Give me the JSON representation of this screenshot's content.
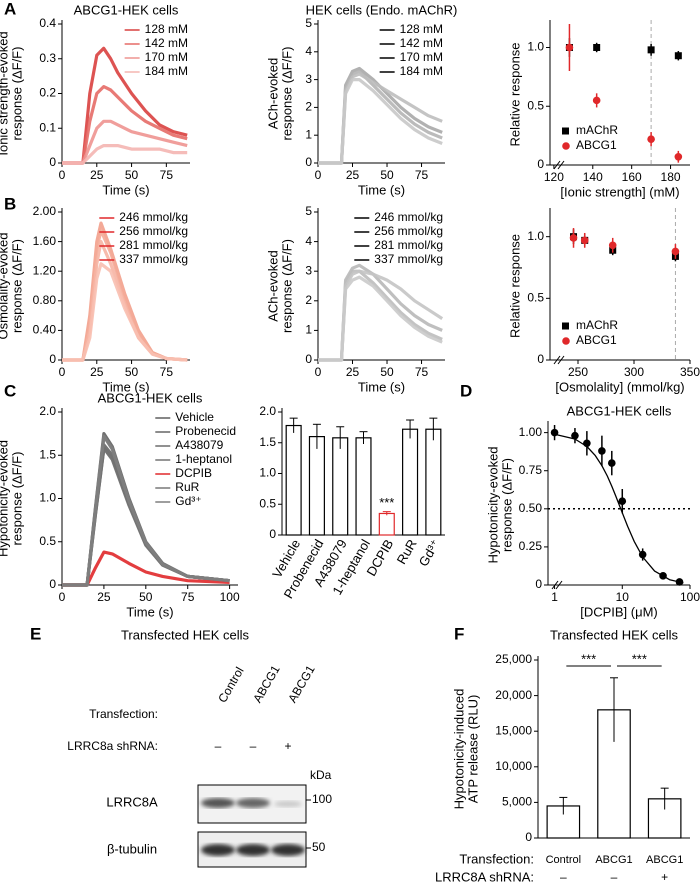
{
  "panel_labels": [
    "A",
    "B",
    "C",
    "D",
    "E",
    "F"
  ],
  "chart_data": [
    {
      "type": "line",
      "title": "ABCG1-HEK cells",
      "ylabel": [
        "Ionic strength-evoked",
        "response (ΔF/F)"
      ],
      "xlabel": "Time (s)",
      "x": [
        0,
        10,
        15,
        20,
        25,
        30,
        35,
        40,
        50,
        60,
        70,
        80,
        90
      ],
      "series": [
        {
          "name": "128 mM",
          "color": "#d9403f",
          "values": [
            0,
            0,
            0,
            0.2,
            0.31,
            0.33,
            0.3,
            0.26,
            0.2,
            0.15,
            0.11,
            0.09,
            0.08
          ]
        },
        {
          "name": "142 mM",
          "color": "#e56b67",
          "values": [
            0,
            0,
            0,
            0.12,
            0.2,
            0.22,
            0.21,
            0.19,
            0.15,
            0.12,
            0.1,
            0.08,
            0.07
          ]
        },
        {
          "name": "170 mM",
          "color": "#ee9490",
          "values": [
            0,
            0,
            0,
            0.05,
            0.1,
            0.12,
            0.12,
            0.11,
            0.09,
            0.08,
            0.07,
            0.06,
            0.05
          ]
        },
        {
          "name": "184 mM",
          "color": "#f4b5b1",
          "values": [
            0,
            0,
            0,
            0.02,
            0.04,
            0.05,
            0.05,
            0.05,
            0.04,
            0.04,
            0.04,
            0.03,
            0.03
          ]
        }
      ],
      "xlim": [
        0,
        92
      ],
      "xticks": [
        0,
        25,
        50,
        75
      ],
      "ylim": [
        0,
        0.4
      ],
      "yticks": [
        0,
        0.1,
        0.2,
        0.3,
        0.4
      ],
      "legend": "upper right"
    },
    {
      "type": "line",
      "title": "HEK cells (Endo. mAChR)",
      "ylabel": [
        "ACh-evoked",
        "response (ΔF/F)"
      ],
      "xlabel": "Time (s)",
      "x": [
        0,
        10,
        17,
        20,
        25,
        30,
        40,
        50,
        60,
        70,
        80,
        90
      ],
      "series": [
        {
          "name": "128 mM",
          "color": "#a9a9a9",
          "values": [
            0,
            0,
            0,
            2.8,
            3.3,
            3.4,
            3.0,
            2.5,
            2.0,
            1.6,
            1.3,
            1.1
          ]
        },
        {
          "name": "142 mM",
          "color": "#b4b4b4",
          "values": [
            0,
            0,
            0,
            2.7,
            3.2,
            3.3,
            2.8,
            2.3,
            1.8,
            1.4,
            1.1,
            0.9
          ]
        },
        {
          "name": "170 mM",
          "color": "#bebebe",
          "values": [
            0,
            0,
            0,
            2.6,
            3.1,
            3.2,
            2.9,
            2.6,
            2.3,
            2.0,
            1.7,
            1.5
          ]
        },
        {
          "name": "184 mM",
          "color": "#c8c8c8",
          "values": [
            0,
            0,
            0,
            2.5,
            3.0,
            3.0,
            2.6,
            2.1,
            1.6,
            1.2,
            0.9,
            0.7
          ]
        }
      ],
      "xlim": [
        0,
        92
      ],
      "xticks": [
        0,
        25,
        50,
        75
      ],
      "ylim": [
        0,
        5
      ],
      "yticks": [
        0,
        1,
        2,
        3,
        4,
        5
      ],
      "legend": "upper right",
      "legend_swatch_color": "#000000"
    },
    {
      "type": "scatter",
      "ylabel": [
        "Relative response"
      ],
      "xlabel": "[Ionic strength] (mM)",
      "x": [
        128,
        142,
        170,
        184
      ],
      "series": [
        {
          "name": "mAChR",
          "color": "#000000",
          "marker": "square",
          "values": [
            1.0,
            1.0,
            0.98,
            0.93
          ],
          "errors": [
            0.08,
            0.04,
            0.05,
            0.04
          ]
        },
        {
          "name": "ABCG1",
          "color": "#e0282a",
          "marker": "circle",
          "values": [
            1.0,
            0.55,
            0.22,
            0.07
          ],
          "errors": [
            0.2,
            0.06,
            0.06,
            0.05
          ]
        }
      ],
      "xlim": [
        118,
        190
      ],
      "xticks": [
        120,
        140,
        160,
        180
      ],
      "ylim": [
        0,
        1.2
      ],
      "yticks": [
        0,
        0.5,
        {
          "value": 1,
          "label": "1.0"
        }
      ],
      "vline": 170,
      "legend": "lower left"
    },
    {
      "type": "line",
      "ylabel": [
        "Osmolality-evoked",
        "response (ΔF/F)"
      ],
      "xlabel": "Time (s)",
      "x": [
        0,
        15,
        20,
        25,
        28,
        35,
        45,
        55,
        65,
        75,
        90
      ],
      "series": [
        {
          "name": "246 mmol/kg",
          "color": "#f2a08c",
          "values": [
            0,
            0,
            0.6,
            1.6,
            1.85,
            1.5,
            0.9,
            0.4,
            0.1,
            0.02,
            0
          ]
        },
        {
          "name": "256 mmol/kg",
          "color": "#f4aa97",
          "values": [
            0,
            0,
            0.5,
            1.5,
            1.75,
            1.45,
            0.85,
            0.35,
            0.1,
            0.02,
            0
          ]
        },
        {
          "name": "281 mmol/kg",
          "color": "#f6b4a3",
          "values": [
            0,
            0,
            0.4,
            1.3,
            1.6,
            1.3,
            0.75,
            0.3,
            0.08,
            0.02,
            0
          ]
        },
        {
          "name": "337 mmol/kg",
          "color": "#f8bfb0",
          "values": [
            0,
            0,
            0.3,
            1.1,
            1.3,
            1.2,
            0.7,
            0.3,
            0.08,
            0.02,
            0
          ]
        }
      ],
      "xlim": [
        0,
        92
      ],
      "xticks": [
        0,
        25,
        50,
        75
      ],
      "ylim": [
        0,
        2.0
      ],
      "yticks": [
        0,
        {
          "value": 0.4,
          "label": "0.40"
        },
        {
          "value": 0.8,
          "label": "0.80"
        },
        {
          "value": 1.2,
          "label": "1.20"
        },
        {
          "value": 1.6,
          "label": "1.60"
        },
        {
          "value": 2,
          "label": "2.00"
        }
      ],
      "legend": "upper right",
      "legend_swatch_color": "#e0282a"
    },
    {
      "type": "line",
      "ylabel": [
        "ACh-evoked",
        "response (ΔF/F)"
      ],
      "xlabel": "Time (s)",
      "x": [
        0,
        10,
        17,
        20,
        25,
        30,
        40,
        50,
        60,
        70,
        80,
        90
      ],
      "series": [
        {
          "name": "246 mmol/kg",
          "color": "#b8b8b8",
          "values": [
            0,
            0,
            0,
            2.7,
            3.1,
            3.2,
            2.9,
            2.4,
            1.9,
            1.5,
            1.2,
            1.0
          ]
        },
        {
          "name": "256 mmol/kg",
          "color": "#bdbdbd",
          "values": [
            0,
            0,
            0,
            2.6,
            3.0,
            3.0,
            2.6,
            2.1,
            1.6,
            1.2,
            0.9,
            0.7
          ]
        },
        {
          "name": "281 mmol/kg",
          "color": "#c4c4c4",
          "values": [
            0,
            0,
            0,
            2.5,
            2.9,
            3.0,
            2.9,
            2.7,
            2.4,
            2.0,
            1.7,
            1.4
          ]
        },
        {
          "name": "337 mmol/kg",
          "color": "#cacaca",
          "values": [
            0,
            0,
            0,
            2.4,
            2.7,
            2.8,
            2.5,
            2.0,
            1.5,
            1.1,
            0.8,
            0.6
          ]
        }
      ],
      "xlim": [
        0,
        92
      ],
      "xticks": [
        0,
        25,
        50,
        75
      ],
      "ylim": [
        0,
        5
      ],
      "yticks": [
        0,
        1,
        2,
        3,
        4,
        5
      ],
      "legend": "upper right",
      "legend_swatch_color": "#000000"
    },
    {
      "type": "scatter",
      "ylabel": [
        "Relative response"
      ],
      "xlabel": "[Osmolality] (mmol/kg)",
      "x": [
        246,
        256,
        281,
        337
      ],
      "series": [
        {
          "name": "mAChR",
          "color": "#000000",
          "marker": "square",
          "values": [
            1.0,
            0.97,
            0.89,
            0.84
          ],
          "errors": [
            0.06,
            0.05,
            0.04,
            0.04
          ]
        },
        {
          "name": "ABCG1",
          "color": "#e0282a",
          "marker": "circle",
          "values": [
            0.99,
            0.97,
            0.93,
            0.88
          ],
          "errors": [
            0.08,
            0.06,
            0.06,
            0.06
          ]
        }
      ],
      "xlim": [
        225,
        350
      ],
      "xticks": [
        250,
        300,
        350
      ],
      "ylim": [
        0,
        1.2
      ],
      "yticks": [
        0,
        0.5,
        {
          "value": 1,
          "label": "1.0"
        }
      ],
      "vline": 337,
      "legend": "lower left"
    },
    {
      "type": "line",
      "title": "ABCG1-HEK cells",
      "ylabel": [
        "Hypotonicity-evoked",
        "response (ΔF/F)"
      ],
      "xlabel": "Time (s)",
      "x": [
        0,
        15,
        20,
        25,
        30,
        40,
        50,
        60,
        75,
        100
      ],
      "series": [
        {
          "name": "Vehicle",
          "color": "#5f5f5f",
          "values": [
            0,
            0,
            0.9,
            1.75,
            1.6,
            1.0,
            0.5,
            0.25,
            0.1,
            0.05
          ]
        },
        {
          "name": "Probenecid",
          "color": "#666666",
          "values": [
            0,
            0,
            0.85,
            1.62,
            1.5,
            0.95,
            0.48,
            0.24,
            0.1,
            0.05
          ]
        },
        {
          "name": "A438079",
          "color": "#6c6c6c",
          "values": [
            0,
            0,
            0.82,
            1.58,
            1.45,
            0.92,
            0.46,
            0.23,
            0.1,
            0.05
          ]
        },
        {
          "name": "1-heptanol",
          "color": "#727272",
          "values": [
            0,
            0,
            0.82,
            1.58,
            1.47,
            0.94,
            0.47,
            0.23,
            0.1,
            0.05
          ]
        },
        {
          "name": "DCPIB",
          "color": "#e0282a",
          "values": [
            0,
            0,
            0.2,
            0.38,
            0.36,
            0.25,
            0.15,
            0.1,
            0.05,
            0.03
          ]
        },
        {
          "name": "RuR",
          "color": "#787878",
          "values": [
            0,
            0,
            0.88,
            1.72,
            1.58,
            0.98,
            0.49,
            0.24,
            0.1,
            0.05
          ]
        },
        {
          "name": "Gd³⁺",
          "color": "#7e7e7e",
          "values": [
            0,
            0,
            0.88,
            1.72,
            1.57,
            0.97,
            0.49,
            0.24,
            0.1,
            0.05
          ]
        }
      ],
      "xlim": [
        0,
        105
      ],
      "xticks": [
        0,
        25,
        50,
        75,
        100
      ],
      "ylim": [
        0,
        2.0
      ],
      "yticks": [
        0,
        0.5,
        {
          "value": 1,
          "label": "1.0"
        },
        1.5,
        {
          "value": 2,
          "label": "2.0"
        }
      ],
      "legend": "upper right",
      "legend_text_color": true
    },
    {
      "type": "bar",
      "categories": [
        "Vehicle",
        "Probenecid",
        "A438079",
        "1-heptanol",
        "DCPIB",
        "RuR",
        "Gd³⁺"
      ],
      "values": [
        1.78,
        1.6,
        1.58,
        1.58,
        0.35,
        1.72,
        1.72
      ],
      "errors": [
        0.12,
        0.2,
        0.18,
        0.1,
        0.03,
        0.15,
        0.18
      ],
      "colors": [
        "#000000",
        "#000000",
        "#000000",
        "#000000",
        "#e0282a",
        "#000000",
        "#000000"
      ],
      "ylim": [
        0,
        2.0
      ],
      "yticks": [
        0,
        0.5,
        {
          "value": 1,
          "label": "1.0"
        },
        1.5,
        {
          "value": 2,
          "label": "2.0"
        }
      ],
      "annotations": [
        "***"
      ]
    },
    {
      "type": "scatter",
      "title": "ABCG1-HEK cells",
      "ylabel": [
        "Hypotonicity-evoked",
        "response (ΔF/F)"
      ],
      "xlabel": "[DCPIB] (μM)",
      "xlog": true,
      "series": [
        {
          "color": "#000000",
          "marker": "circle",
          "x": [
            1,
            2,
            3,
            5,
            7,
            10,
            20,
            40,
            70
          ],
          "values": [
            1.0,
            0.98,
            0.93,
            0.88,
            0.8,
            0.55,
            0.2,
            0.06,
            0.02
          ],
          "errors": [
            0.05,
            0.05,
            0.08,
            0.1,
            0.08,
            0.08,
            0.04,
            0.02,
            0.02
          ]
        },
        {
          "color": "#000000",
          "style": "line",
          "x": [
            1,
            2,
            3,
            4,
            5,
            6,
            7,
            8,
            10,
            12,
            15,
            20,
            30,
            50,
            80
          ],
          "values": [
            0.989,
            0.958,
            0.909,
            0.849,
            0.783,
            0.715,
            0.648,
            0.585,
            0.474,
            0.385,
            0.286,
            0.184,
            0.091,
            0.035,
            0.014
          ]
        }
      ],
      "xlim": [
        0.8,
        100
      ],
      "xticks": [
        1,
        10,
        100
      ],
      "ylim": [
        0,
        1.05
      ],
      "yticks": [
        0,
        0.25,
        {
          "value": 0.5,
          "label": "0.50"
        },
        0.75,
        {
          "value": 1,
          "label": "1.00"
        }
      ],
      "hline": 0.5
    },
    {
      "type": "bar",
      "title": "Transfected HEK cells",
      "ylabel": [
        "Hypotonicity-induced",
        "ATP release (RLU)"
      ],
      "categories": [
        "Control",
        "ABCG1",
        "ABCG1"
      ],
      "values": [
        4500,
        18000,
        5500
      ],
      "errors": [
        1200,
        4500,
        1500
      ],
      "colors": [
        "#000000",
        "#000000",
        "#000000"
      ],
      "ylim": [
        0,
        25000
      ],
      "yticks": [
        0,
        {
          "value": 5000,
          "label": "5,000"
        },
        {
          "value": 10000,
          "label": "10,000"
        },
        {
          "value": 15000,
          "label": "15,000"
        },
        {
          "value": 20000,
          "label": "20,000"
        },
        {
          "value": 25000,
          "label": "25,000"
        }
      ],
      "annotations": [
        "***",
        "***"
      ],
      "row_labels": [
        "Transfection:",
        "LRRC8A shRNA:"
      ],
      "shrna": [
        "–",
        "–",
        "+"
      ]
    }
  ],
  "blot": {
    "title": "Transfected HEK cells",
    "lanes": [
      "Control",
      "ABCG1",
      "ABCG1"
    ],
    "transfection_label": "Transfection:",
    "shrna_label": "LRRC8a shRNA:",
    "shrna": [
      "–",
      "–",
      "+"
    ],
    "kda": "kDa",
    "rows": [
      {
        "label": "LRRC8A",
        "marker": "100"
      },
      {
        "label": "β-tubulin",
        "marker": "50"
      }
    ]
  }
}
